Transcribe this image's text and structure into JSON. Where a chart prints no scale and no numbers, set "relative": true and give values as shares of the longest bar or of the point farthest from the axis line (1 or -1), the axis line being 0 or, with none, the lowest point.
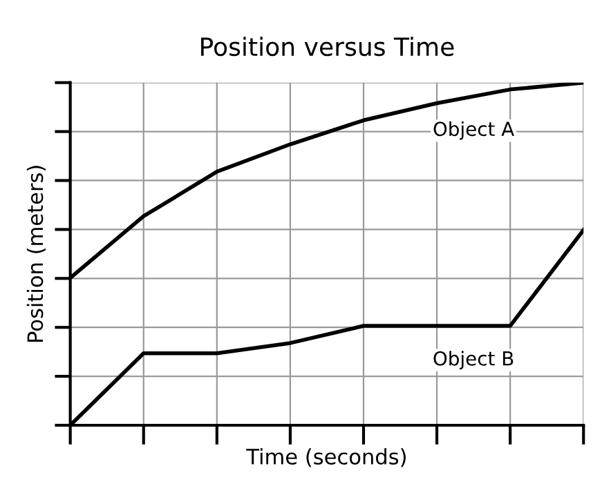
{
  "chart_data": {
    "type": "line",
    "title": "Position versus Time",
    "xlabel": "Time (seconds)",
    "ylabel": "Position (meters)",
    "relative": true,
    "grid": true,
    "tick_labels": false,
    "legend": false,
    "marker": "none",
    "line_style": "solid",
    "categories": [
      null,
      null,
      null,
      null,
      null,
      null,
      null,
      null
    ],
    "series": [
      {
        "name": "Object A",
        "color": "#000000",
        "values": [
          0.43,
          0.61,
          0.74,
          0.82,
          0.89,
          0.94,
          0.98,
          1.0
        ]
      },
      {
        "name": "Object B",
        "color": "#000000",
        "values": [
          0.0,
          0.21,
          0.21,
          0.24,
          0.29,
          0.29,
          0.29,
          0.57
        ]
      }
    ]
  }
}
